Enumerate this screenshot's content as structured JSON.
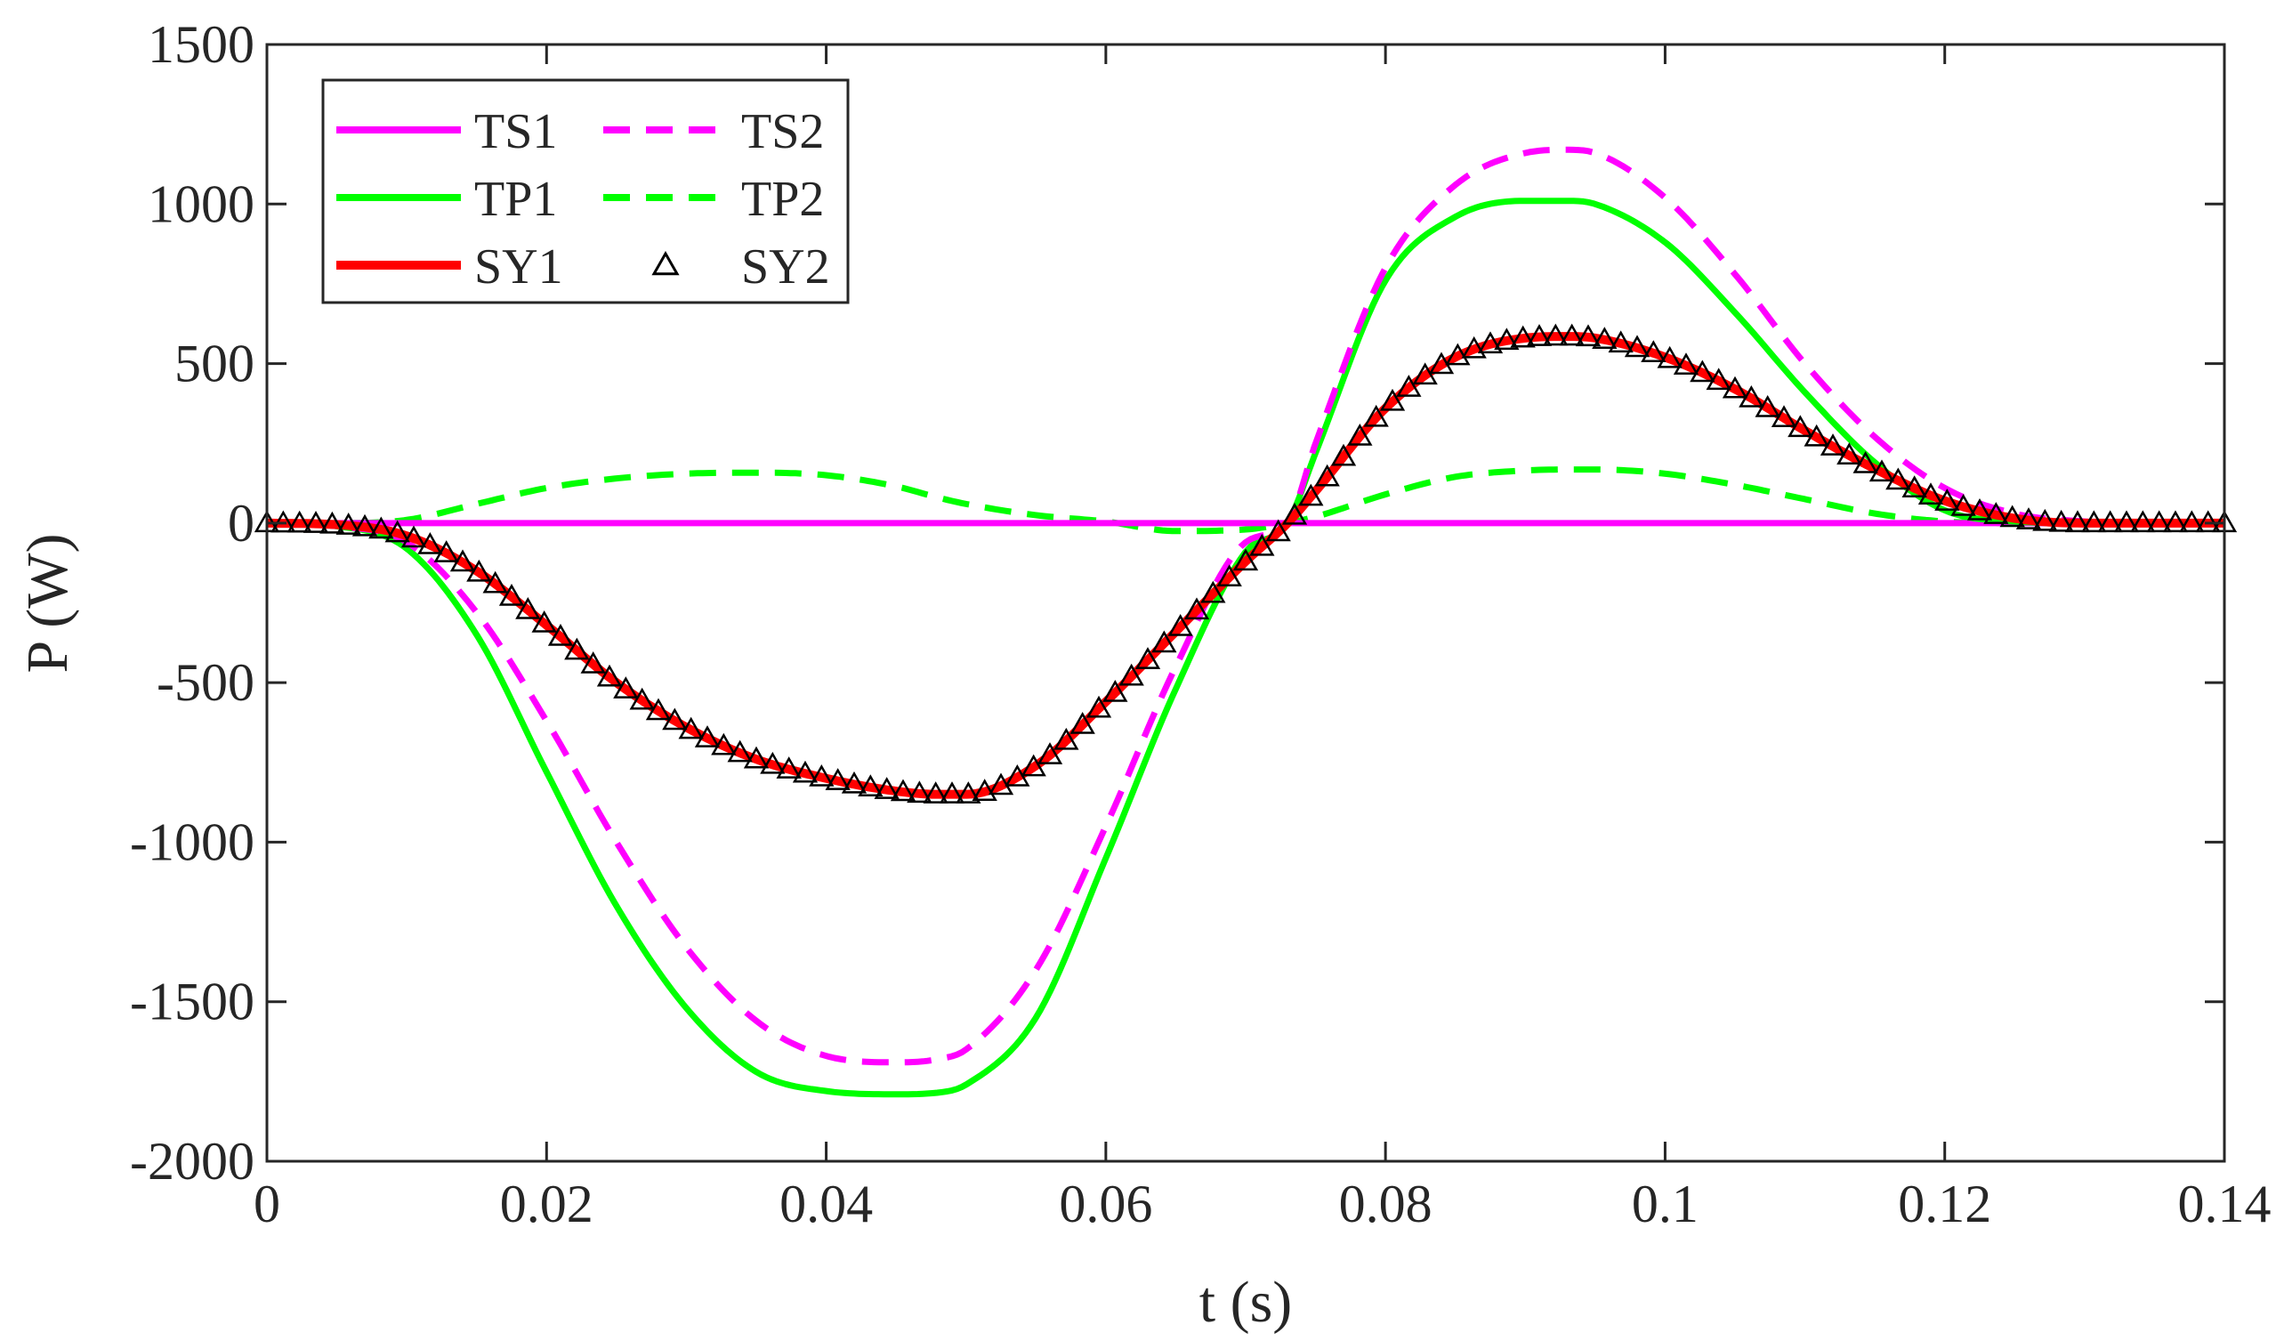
{
  "chart_data": {
    "type": "line",
    "title": "",
    "xlabel": "t (s)",
    "ylabel": "P (W)",
    "xlim": [
      0,
      0.14
    ],
    "ylim": [
      -2000,
      1500
    ],
    "grid": false,
    "legend_position": "top-left",
    "xticks": [
      0,
      0.02,
      0.04,
      0.06,
      0.08,
      0.1,
      0.12,
      0.14
    ],
    "xtick_labels": [
      "0",
      "0.02",
      "0.04",
      "0.06",
      "0.08",
      "0.1",
      "0.12",
      "0.14"
    ],
    "yticks": [
      -2000,
      -1500,
      -1000,
      -500,
      0,
      500,
      1000,
      1500
    ],
    "ytick_labels": [
      "-2000",
      "-1500",
      "-1000",
      "-500",
      "0",
      "500",
      "1000",
      "1500"
    ],
    "x": [
      0,
      0.005,
      0.01,
      0.015,
      0.02,
      0.025,
      0.03,
      0.035,
      0.04,
      0.045,
      0.048,
      0.05,
      0.055,
      0.06,
      0.065,
      0.07,
      0.073,
      0.075,
      0.08,
      0.085,
      0.09,
      0.093,
      0.095,
      0.1,
      0.105,
      0.11,
      0.115,
      0.12,
      0.125,
      0.13,
      0.135,
      0.14
    ],
    "series": [
      {
        "name": "TS1",
        "style": "solid",
        "color": "#ff00ff",
        "values": [
          0,
          0,
          0,
          0,
          0,
          0,
          0,
          0,
          0,
          0,
          0,
          0,
          0,
          0,
          0,
          0,
          0,
          0,
          0,
          0,
          0,
          0,
          0,
          0,
          0,
          0,
          0,
          0,
          0,
          0,
          0,
          0
        ]
      },
      {
        "name": "TS2",
        "style": "dashed",
        "color": "#ff00ff",
        "values": [
          0,
          -10,
          -60,
          -280,
          -620,
          -1000,
          -1330,
          -1560,
          -1670,
          -1690,
          -1680,
          -1650,
          -1400,
          -950,
          -450,
          -60,
          0,
          250,
          800,
          1060,
          1160,
          1170,
          1160,
          1020,
          780,
          500,
          270,
          110,
          30,
          5,
          0,
          0
        ]
      },
      {
        "name": "TP1",
        "style": "solid",
        "color": "#00ff00",
        "values": [
          0,
          -10,
          -80,
          -350,
          -780,
          -1200,
          -1520,
          -1720,
          -1780,
          -1790,
          -1785,
          -1760,
          -1550,
          -1050,
          -520,
          -90,
          0,
          220,
          760,
          960,
          1010,
          1010,
          1000,
          880,
          660,
          410,
          190,
          40,
          5,
          0,
          0,
          0
        ]
      },
      {
        "name": "TP2",
        "style": "dashed",
        "color": "#00ff00",
        "values": [
          0,
          0,
          10,
          60,
          110,
          140,
          155,
          158,
          150,
          115,
          80,
          60,
          25,
          5,
          -25,
          -20,
          0,
          20,
          90,
          145,
          165,
          168,
          168,
          155,
          120,
          75,
          30,
          5,
          0,
          0,
          0,
          0
        ]
      },
      {
        "name": "SY1",
        "style": "solid",
        "color": "#ff0000",
        "values": [
          0,
          -5,
          -40,
          -150,
          -320,
          -500,
          -640,
          -740,
          -800,
          -840,
          -850,
          -850,
          -760,
          -560,
          -340,
          -120,
          0,
          100,
          360,
          520,
          580,
          585,
          580,
          520,
          420,
          290,
          170,
          70,
          15,
          0,
          0,
          0
        ]
      },
      {
        "name": "SY2",
        "style": "markers",
        "color": "#000000",
        "marker": "triangle",
        "values": [
          0,
          -5,
          -40,
          -150,
          -320,
          -500,
          -640,
          -740,
          -800,
          -840,
          -850,
          -850,
          -760,
          -560,
          -340,
          -120,
          0,
          100,
          360,
          520,
          580,
          585,
          580,
          520,
          420,
          290,
          170,
          70,
          15,
          0,
          0,
          0
        ]
      }
    ]
  }
}
